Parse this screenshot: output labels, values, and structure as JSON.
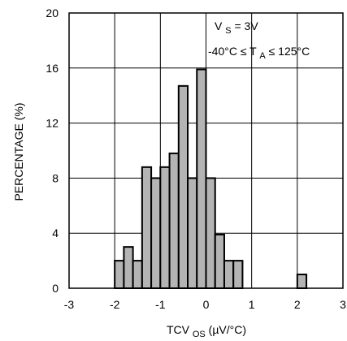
{
  "chart_data": {
    "type": "bar",
    "subtype": "histogram",
    "xlabel": {
      "main": "TCV",
      "sub": "OS",
      "unit": " (µV/°C)"
    },
    "ylabel": "PERCENTAGE (%)",
    "xlim": [
      -3,
      3
    ],
    "ylim": [
      0,
      20
    ],
    "xticks": [
      -3,
      -2,
      -1,
      0,
      1,
      2,
      3
    ],
    "yticks": [
      0,
      4,
      8,
      12,
      16,
      20
    ],
    "grid": true,
    "bar_color": "#b4b4b4",
    "bin_width": 0.2,
    "bins": [
      {
        "x": -1.9,
        "value": 2
      },
      {
        "x": -1.7,
        "value": 3
      },
      {
        "x": -1.5,
        "value": 2
      },
      {
        "x": -1.3,
        "value": 8.8
      },
      {
        "x": -1.1,
        "value": 8
      },
      {
        "x": -0.9,
        "value": 8.8
      },
      {
        "x": -0.7,
        "value": 9.8
      },
      {
        "x": -0.5,
        "value": 14.7
      },
      {
        "x": -0.3,
        "value": 8
      },
      {
        "x": -0.1,
        "value": 15.9
      },
      {
        "x": 0.1,
        "value": 8
      },
      {
        "x": 0.3,
        "value": 3.9
      },
      {
        "x": 0.5,
        "value": 2
      },
      {
        "x": 0.7,
        "value": 2
      },
      {
        "x": 2.1,
        "value": 1
      }
    ],
    "annotations": [
      {
        "main": "V",
        "sub": "S",
        "rest": " = 3V"
      },
      {
        "pre": "-40°C  ≤ T",
        "sub": "A",
        "rest": " ≤ 125°C"
      }
    ]
  }
}
